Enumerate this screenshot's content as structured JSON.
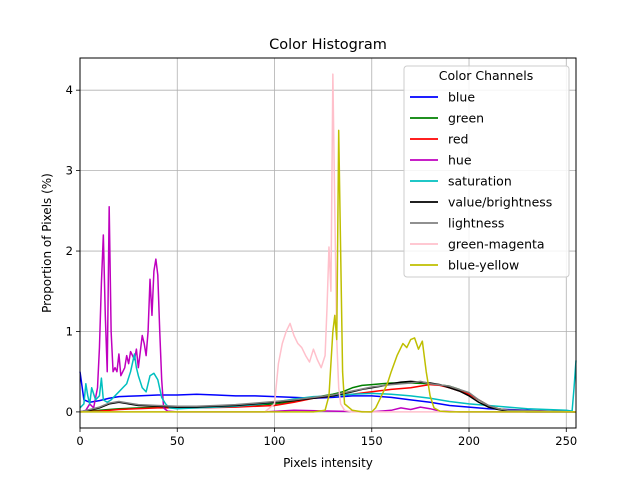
{
  "chart_data": {
    "type": "line",
    "title": "Color Histogram",
    "xlabel": "Pixels intensity",
    "ylabel": "Proportion of Pixels (%)",
    "xlim": [
      0,
      255
    ],
    "ylim": [
      -0.2,
      4.4
    ],
    "x_ticks": [
      0,
      50,
      100,
      150,
      200,
      250
    ],
    "y_ticks": [
      0,
      1,
      2,
      3,
      4
    ],
    "grid": true,
    "legend": {
      "title": "Color Channels",
      "placement": "top-right"
    },
    "series": [
      {
        "name": "blue",
        "color": "#0000ff",
        "points": [
          [
            0,
            0.5
          ],
          [
            2,
            0.15
          ],
          [
            5,
            0.12
          ],
          [
            10,
            0.14
          ],
          [
            15,
            0.17
          ],
          [
            20,
            0.19
          ],
          [
            30,
            0.2
          ],
          [
            40,
            0.21
          ],
          [
            50,
            0.21
          ],
          [
            60,
            0.22
          ],
          [
            70,
            0.21
          ],
          [
            80,
            0.2
          ],
          [
            90,
            0.2
          ],
          [
            100,
            0.19
          ],
          [
            110,
            0.18
          ],
          [
            120,
            0.17
          ],
          [
            130,
            0.18
          ],
          [
            140,
            0.2
          ],
          [
            150,
            0.2
          ],
          [
            160,
            0.18
          ],
          [
            170,
            0.15
          ],
          [
            180,
            0.12
          ],
          [
            190,
            0.08
          ],
          [
            200,
            0.06
          ],
          [
            210,
            0.04
          ],
          [
            220,
            0.03
          ],
          [
            230,
            0.02
          ],
          [
            240,
            0.01
          ],
          [
            255,
            0.0
          ]
        ]
      },
      {
        "name": "green",
        "color": "#008000",
        "points": [
          [
            0,
            0.0
          ],
          [
            10,
            0.02
          ],
          [
            20,
            0.04
          ],
          [
            40,
            0.06
          ],
          [
            60,
            0.06
          ],
          [
            80,
            0.07
          ],
          [
            100,
            0.1
          ],
          [
            110,
            0.13
          ],
          [
            120,
            0.18
          ],
          [
            130,
            0.22
          ],
          [
            135,
            0.25
          ],
          [
            140,
            0.3
          ],
          [
            145,
            0.33
          ],
          [
            150,
            0.34
          ],
          [
            155,
            0.35
          ],
          [
            160,
            0.36
          ],
          [
            170,
            0.36
          ],
          [
            180,
            0.35
          ],
          [
            190,
            0.32
          ],
          [
            195,
            0.28
          ],
          [
            200,
            0.22
          ],
          [
            205,
            0.15
          ],
          [
            210,
            0.08
          ],
          [
            215,
            0.04
          ],
          [
            220,
            0.02
          ],
          [
            230,
            0.01
          ],
          [
            255,
            0.0
          ]
        ]
      },
      {
        "name": "red",
        "color": "#ff0000",
        "points": [
          [
            0,
            0.0
          ],
          [
            10,
            0.01
          ],
          [
            20,
            0.03
          ],
          [
            40,
            0.05
          ],
          [
            60,
            0.05
          ],
          [
            80,
            0.06
          ],
          [
            100,
            0.08
          ],
          [
            110,
            0.12
          ],
          [
            120,
            0.17
          ],
          [
            130,
            0.2
          ],
          [
            140,
            0.22
          ],
          [
            150,
            0.25
          ],
          [
            160,
            0.28
          ],
          [
            170,
            0.3
          ],
          [
            175,
            0.32
          ],
          [
            180,
            0.34
          ],
          [
            185,
            0.33
          ],
          [
            190,
            0.3
          ],
          [
            200,
            0.22
          ],
          [
            205,
            0.15
          ],
          [
            210,
            0.08
          ],
          [
            215,
            0.04
          ],
          [
            220,
            0.02
          ],
          [
            255,
            0.0
          ]
        ]
      },
      {
        "name": "hue",
        "color": "#bf00bf",
        "points": [
          [
            0,
            0.0
          ],
          [
            3,
            0.02
          ],
          [
            5,
            0.1
          ],
          [
            7,
            0.05
          ],
          [
            9,
            0.3
          ],
          [
            10,
            0.8
          ],
          [
            11,
            1.6
          ],
          [
            12,
            2.2
          ],
          [
            13,
            1.2
          ],
          [
            14,
            0.5
          ],
          [
            15,
            2.55
          ],
          [
            16,
            1.0
          ],
          [
            17,
            0.5
          ],
          [
            18,
            0.55
          ],
          [
            19,
            0.5
          ],
          [
            20,
            0.72
          ],
          [
            21,
            0.45
          ],
          [
            22,
            0.5
          ],
          [
            23,
            0.55
          ],
          [
            24,
            0.7
          ],
          [
            25,
            0.6
          ],
          [
            26,
            0.75
          ],
          [
            27,
            0.7
          ],
          [
            28,
            0.65
          ],
          [
            29,
            0.78
          ],
          [
            30,
            0.55
          ],
          [
            31,
            0.75
          ],
          [
            32,
            0.95
          ],
          [
            33,
            0.85
          ],
          [
            34,
            0.7
          ],
          [
            35,
            1.0
          ],
          [
            36,
            1.65
          ],
          [
            37,
            1.2
          ],
          [
            38,
            1.75
          ],
          [
            39,
            1.9
          ],
          [
            40,
            1.7
          ],
          [
            41,
            1.0
          ],
          [
            42,
            0.4
          ],
          [
            43,
            0.05
          ],
          [
            45,
            0.01
          ],
          [
            50,
            0.0
          ],
          [
            95,
            0.0
          ],
          [
            110,
            0.02
          ],
          [
            130,
            0.01
          ],
          [
            150,
            0.0
          ],
          [
            160,
            0.02
          ],
          [
            165,
            0.05
          ],
          [
            170,
            0.03
          ],
          [
            175,
            0.06
          ],
          [
            180,
            0.04
          ],
          [
            185,
            0.01
          ],
          [
            195,
            0.0
          ],
          [
            255,
            0.0
          ]
        ]
      },
      {
        "name": "saturation",
        "color": "#00bfbf",
        "points": [
          [
            0,
            0.05
          ],
          [
            2,
            0.1
          ],
          [
            3,
            0.35
          ],
          [
            4,
            0.2
          ],
          [
            5,
            0.1
          ],
          [
            6,
            0.3
          ],
          [
            8,
            0.15
          ],
          [
            10,
            0.2
          ],
          [
            11,
            0.42
          ],
          [
            12,
            0.15
          ],
          [
            14,
            0.12
          ],
          [
            16,
            0.15
          ],
          [
            18,
            0.2
          ],
          [
            20,
            0.25
          ],
          [
            22,
            0.3
          ],
          [
            24,
            0.35
          ],
          [
            26,
            0.5
          ],
          [
            28,
            0.72
          ],
          [
            29,
            0.55
          ],
          [
            30,
            0.45
          ],
          [
            32,
            0.3
          ],
          [
            34,
            0.25
          ],
          [
            36,
            0.45
          ],
          [
            38,
            0.48
          ],
          [
            40,
            0.4
          ],
          [
            42,
            0.18
          ],
          [
            44,
            0.1
          ],
          [
            46,
            0.05
          ],
          [
            50,
            0.04
          ],
          [
            60,
            0.05
          ],
          [
            70,
            0.06
          ],
          [
            80,
            0.07
          ],
          [
            90,
            0.09
          ],
          [
            100,
            0.12
          ],
          [
            110,
            0.16
          ],
          [
            120,
            0.19
          ],
          [
            130,
            0.2
          ],
          [
            140,
            0.22
          ],
          [
            150,
            0.23
          ],
          [
            160,
            0.22
          ],
          [
            170,
            0.2
          ],
          [
            180,
            0.17
          ],
          [
            190,
            0.13
          ],
          [
            200,
            0.1
          ],
          [
            210,
            0.08
          ],
          [
            220,
            0.06
          ],
          [
            230,
            0.04
          ],
          [
            240,
            0.03
          ],
          [
            250,
            0.02
          ],
          [
            253,
            0.01
          ],
          [
            254,
            0.3
          ],
          [
            255,
            0.64
          ]
        ]
      },
      {
        "name": "value/brightness",
        "color": "#000000",
        "points": [
          [
            0,
            0.0
          ],
          [
            5,
            0.02
          ],
          [
            10,
            0.05
          ],
          [
            15,
            0.1
          ],
          [
            20,
            0.12
          ],
          [
            25,
            0.1
          ],
          [
            30,
            0.08
          ],
          [
            40,
            0.07
          ],
          [
            50,
            0.06
          ],
          [
            60,
            0.06
          ],
          [
            70,
            0.07
          ],
          [
            80,
            0.08
          ],
          [
            90,
            0.1
          ],
          [
            100,
            0.12
          ],
          [
            110,
            0.14
          ],
          [
            120,
            0.17
          ],
          [
            130,
            0.2
          ],
          [
            140,
            0.25
          ],
          [
            145,
            0.28
          ],
          [
            150,
            0.3
          ],
          [
            155,
            0.32
          ],
          [
            160,
            0.35
          ],
          [
            165,
            0.37
          ],
          [
            170,
            0.38
          ],
          [
            175,
            0.37
          ],
          [
            180,
            0.36
          ],
          [
            185,
            0.34
          ],
          [
            190,
            0.3
          ],
          [
            195,
            0.26
          ],
          [
            200,
            0.2
          ],
          [
            205,
            0.12
          ],
          [
            210,
            0.06
          ],
          [
            215,
            0.03
          ],
          [
            220,
            0.01
          ],
          [
            230,
            0.0
          ],
          [
            255,
            0.0
          ]
        ]
      },
      {
        "name": "lightness",
        "color": "#808080",
        "points": [
          [
            0,
            0.0
          ],
          [
            5,
            0.03
          ],
          [
            10,
            0.06
          ],
          [
            15,
            0.11
          ],
          [
            20,
            0.13
          ],
          [
            25,
            0.11
          ],
          [
            30,
            0.09
          ],
          [
            40,
            0.08
          ],
          [
            50,
            0.07
          ],
          [
            60,
            0.07
          ],
          [
            70,
            0.08
          ],
          [
            80,
            0.09
          ],
          [
            90,
            0.11
          ],
          [
            100,
            0.13
          ],
          [
            110,
            0.15
          ],
          [
            120,
            0.18
          ],
          [
            130,
            0.21
          ],
          [
            140,
            0.26
          ],
          [
            150,
            0.31
          ],
          [
            160,
            0.34
          ],
          [
            170,
            0.36
          ],
          [
            175,
            0.38
          ],
          [
            180,
            0.35
          ],
          [
            190,
            0.32
          ],
          [
            200,
            0.24
          ],
          [
            205,
            0.15
          ],
          [
            210,
            0.08
          ],
          [
            215,
            0.04
          ],
          [
            220,
            0.02
          ],
          [
            255,
            0.0
          ]
        ]
      },
      {
        "name": "green-magenta",
        "color": "#ffc0cb",
        "points": [
          [
            0,
            0.0
          ],
          [
            95,
            0.0
          ],
          [
            100,
            0.1
          ],
          [
            102,
            0.6
          ],
          [
            104,
            0.85
          ],
          [
            106,
            1.0
          ],
          [
            108,
            1.1
          ],
          [
            110,
            0.95
          ],
          [
            112,
            0.85
          ],
          [
            114,
            0.8
          ],
          [
            116,
            0.7
          ],
          [
            118,
            0.62
          ],
          [
            120,
            0.78
          ],
          [
            122,
            0.65
          ],
          [
            124,
            0.55
          ],
          [
            126,
            0.7
          ],
          [
            127,
            1.3
          ],
          [
            128,
            2.05
          ],
          [
            129,
            1.5
          ],
          [
            130,
            4.2
          ],
          [
            131,
            2.5
          ],
          [
            132,
            0.9
          ],
          [
            133,
            0.3
          ],
          [
            134,
            0.1
          ],
          [
            136,
            0.02
          ],
          [
            140,
            0.0
          ],
          [
            255,
            0.0
          ]
        ]
      },
      {
        "name": "blue-yellow",
        "color": "#bfbf00",
        "points": [
          [
            0,
            0.0
          ],
          [
            120,
            0.0
          ],
          [
            126,
            0.02
          ],
          [
            128,
            0.2
          ],
          [
            130,
            1.0
          ],
          [
            131,
            1.2
          ],
          [
            132,
            0.9
          ],
          [
            133,
            3.5
          ],
          [
            134,
            2.0
          ],
          [
            135,
            0.5
          ],
          [
            136,
            0.1
          ],
          [
            140,
            0.02
          ],
          [
            145,
            0.0
          ],
          [
            150,
            0.0
          ],
          [
            152,
            0.05
          ],
          [
            155,
            0.2
          ],
          [
            158,
            0.35
          ],
          [
            160,
            0.5
          ],
          [
            163,
            0.7
          ],
          [
            166,
            0.85
          ],
          [
            168,
            0.8
          ],
          [
            170,
            0.9
          ],
          [
            172,
            0.92
          ],
          [
            174,
            0.78
          ],
          [
            176,
            0.88
          ],
          [
            178,
            0.5
          ],
          [
            180,
            0.2
          ],
          [
            182,
            0.05
          ],
          [
            185,
            0.01
          ],
          [
            190,
            0.0
          ],
          [
            255,
            0.0
          ]
        ]
      }
    ]
  }
}
